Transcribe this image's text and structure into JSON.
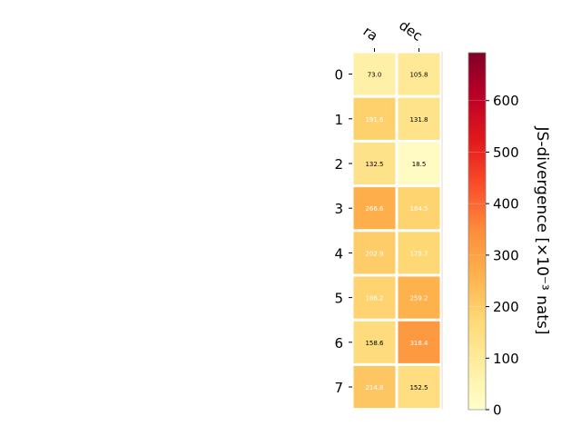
{
  "chart_data": {
    "type": "heatmap",
    "title": "",
    "columns": [
      "ra",
      "dec"
    ],
    "rows": [
      "0",
      "1",
      "2",
      "3",
      "4",
      "5",
      "6",
      "7"
    ],
    "values": [
      [
        73.0,
        105.8
      ],
      [
        191.6,
        131.8
      ],
      [
        132.5,
        18.5
      ],
      [
        266.6,
        184.5
      ],
      [
        202.9,
        175.7
      ],
      [
        186.2,
        259.2
      ],
      [
        158.6,
        318.4
      ],
      [
        214.8,
        152.5
      ]
    ],
    "value_labels": [
      [
        "73.0",
        "105.8"
      ],
      [
        "191.6",
        "131.8"
      ],
      [
        "132.5",
        "18.5"
      ],
      [
        "266.6",
        "184.5"
      ],
      [
        "202.9",
        "175.7"
      ],
      [
        "186.2",
        "259.2"
      ],
      [
        "158.6",
        "318.4"
      ],
      [
        "214.8",
        "152.5"
      ]
    ],
    "label_colors": [
      [
        "#000000",
        "#000000"
      ],
      [
        "#ffffff",
        "#000000"
      ],
      [
        "#000000",
        "#000000"
      ],
      [
        "#ffffff",
        "#ffffff"
      ],
      [
        "#ffffff",
        "#ffffff"
      ],
      [
        "#ffffff",
        "#ffffff"
      ],
      [
        "#000000",
        "#ffffff"
      ],
      [
        "#ffffff",
        "#000000"
      ]
    ],
    "colormap": "YlOrRd",
    "colorbar": {
      "label": "JS-divergence [×10⁻³ nats]",
      "range": [
        0,
        693
      ],
      "ticks": [
        0,
        100,
        200,
        300,
        400,
        500,
        600
      ],
      "tick_labels": [
        "0",
        "100",
        "200",
        "300",
        "400",
        "500",
        "600"
      ]
    },
    "grid": false
  }
}
